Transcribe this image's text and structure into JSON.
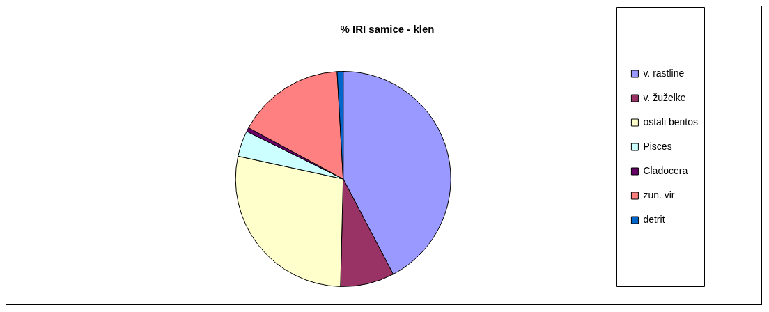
{
  "chart_data": {
    "type": "pie",
    "title": "% IRI samice - klen",
    "categories": [
      "v. rastline",
      "v. žuželke",
      "ostali bentos",
      "Pisces",
      "Cladocera",
      "zun. vir",
      "detrit"
    ],
    "values": [
      42.3,
      8.1,
      28.0,
      3.9,
      0.6,
      16.2,
      0.9
    ],
    "colors": [
      "#9999ff",
      "#993366",
      "#ffffcc",
      "#ccffff",
      "#660066",
      "#ff8080",
      "#0066cc"
    ],
    "legend": "right"
  }
}
